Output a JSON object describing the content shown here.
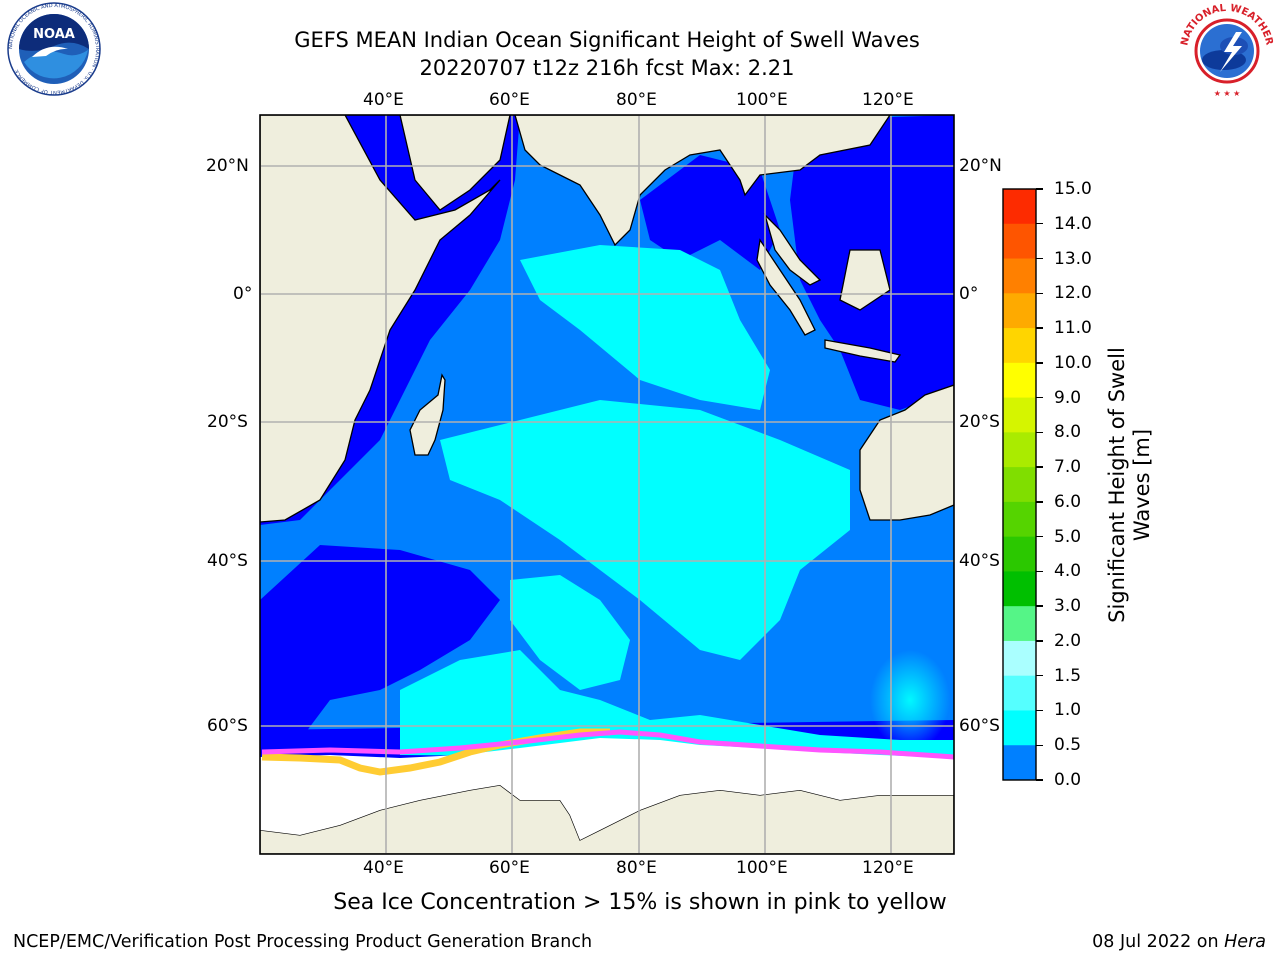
{
  "title": {
    "line1": "GEFS MEAN Indian Ocean Significant Height of Swell Waves",
    "line2": "20220707 t12z 216h fcst   Max: 2.21"
  },
  "axes": {
    "lon_ticks": [
      "40°E",
      "60°E",
      "80°E",
      "100°E",
      "120°E"
    ],
    "lat_ticks": [
      "20°N",
      "0°",
      "20°S",
      "40°S",
      "60°S"
    ],
    "lon_values": [
      40,
      60,
      80,
      100,
      120
    ],
    "lat_values": [
      20,
      0,
      -20,
      -40,
      -60
    ],
    "lon_range": [
      20,
      130
    ],
    "lat_range": [
      28,
      -88
    ],
    "grid": true
  },
  "colorbar": {
    "label_line1": "Significant Height of Swell",
    "label_line2": "Waves [m]",
    "tick_labels": [
      "15.0",
      "14.0",
      "13.0",
      "12.0",
      "11.0",
      "10.0",
      "9.0",
      "8.0",
      "7.0",
      "6.0",
      "5.0",
      "4.0",
      "3.0",
      "2.0",
      "1.5",
      "1.0",
      "0.5",
      "0.0"
    ],
    "colors": [
      "#fe0000",
      "#fd2b00",
      "#fe5500",
      "#ff8000",
      "#feaa00",
      "#ffd500",
      "#ffff00",
      "#d5f500",
      "#aaeb00",
      "#80de00",
      "#55d400",
      "#2bc800",
      "#00bf00",
      "#55f587",
      "#aaffff",
      "#55ffff",
      "#00ffff",
      "#0080ff",
      "#0000ff"
    ]
  },
  "map_colors": {
    "ocean_deep": "#0000ff",
    "ocean_mid": "#0080ff",
    "ocean_high": "#00ffff",
    "land": "#efeedd",
    "ice": "#ffffff",
    "ice_edge_pink": "#ff55ff",
    "ice_edge_yellow": "#ffcc33"
  },
  "caption": "Sea Ice Concentration > 15% is shown in pink to yellow",
  "footer": {
    "left": "NCEP/EMC/Verification Post Processing Product Generation Branch",
    "right_date": "08 Jul 2022 on ",
    "right_host": "Hera"
  },
  "logos": {
    "noaa_text": "NOAA",
    "noaa_ring": "NATIONAL OCEANIC AND ATMOSPHERIC ADMINISTRATION · U.S. DEPARTMENT OF COMMERCE",
    "nws_ring": "NATIONAL WEATHER SERVICE"
  },
  "icons": [
    "noaa-logo-icon",
    "nws-logo-icon"
  ]
}
